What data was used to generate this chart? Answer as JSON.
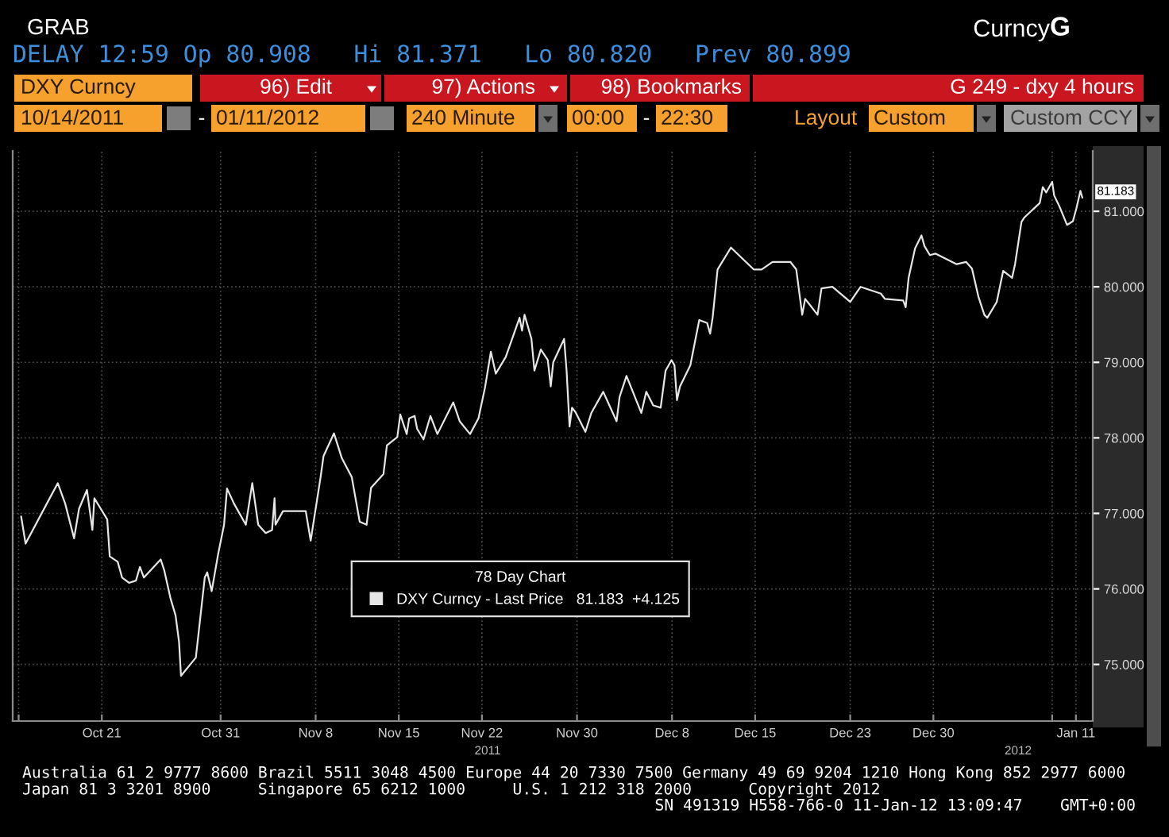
{
  "chart_data": {
    "type": "line",
    "line_style": "solid",
    "x": [
      "2011-10-14T05:00",
      "2011-10-14T14:00",
      "2011-10-16T09:00",
      "2011-10-17T07:00",
      "2011-10-17T22:00",
      "2011-10-18T16:00",
      "2011-10-19T02:00",
      "2011-10-19T18:00",
      "2011-10-20T05:00",
      "2011-10-20T09:00",
      "2011-10-21T11:00",
      "2011-10-21T16:00",
      "2011-10-22T08:00",
      "2011-10-22T17:00",
      "2011-10-23T07:00",
      "2011-10-23T21:00",
      "2011-10-24T05:00",
      "2011-10-24T13:00",
      "2011-10-25T23:00",
      "2011-10-26T06:00",
      "2011-10-26T19:00",
      "2011-10-27T05:00",
      "2011-10-27T12:00",
      "2011-10-27T16:00",
      "2011-10-28T22:00",
      "2011-10-29T16:00",
      "2011-10-29T21:00",
      "2011-10-30T06:00",
      "2011-10-30T19:00",
      "2011-10-31T07:00",
      "2011-10-31T13:00",
      "2011-11-01T03:00",
      "2011-11-02T03:00",
      "2011-11-02T16:00",
      "2011-11-03T04:00",
      "2011-11-03T19:00",
      "2011-11-04T08:00",
      "2011-11-04T13:00",
      "2011-11-04T15:00",
      "2011-11-05T06:00",
      "2011-11-07T04:00",
      "2011-11-07T14:00",
      "2011-11-08T10:00",
      "2011-11-08T16:00",
      "2011-11-09T13:00",
      "2011-11-10T05:00",
      "2011-11-11T01:00",
      "2011-11-11T17:00",
      "2011-11-12T07:00",
      "2011-11-12T16:00",
      "2011-11-13T17:00",
      "2011-11-14T00:00",
      "2011-11-14T21:00",
      "2011-11-15T03:00",
      "2011-11-15T16:00",
      "2011-11-15T21:00",
      "2011-11-16T08:00",
      "2011-11-16T13:00",
      "2011-11-17T02:00",
      "2011-11-17T16:00",
      "2011-11-18T06:00",
      "2011-11-19T14:00",
      "2011-11-20T03:00",
      "2011-11-21T00:00",
      "2011-11-21T17:00",
      "2011-11-22T06:00",
      "2011-11-22T18:00",
      "2011-11-23T04:00",
      "2011-11-24T00:00",
      "2011-11-25T04:00",
      "2011-11-25T09:00",
      "2011-11-25T14:00",
      "2011-11-26T04:00",
      "2011-11-26T10:00",
      "2011-11-26T23:00",
      "2011-11-27T13:00",
      "2011-11-27T19:00",
      "2011-11-28T00:00",
      "2011-11-28T22:00",
      "2011-11-29T03:00",
      "2011-11-29T09:00",
      "2011-11-29T14:00",
      "2011-11-29T21:00",
      "2011-11-30T17:00",
      "2011-12-01T05:00",
      "2011-12-02T05:00",
      "2011-12-03T08:00",
      "2011-12-03T14:00",
      "2011-12-04T04:00",
      "2011-12-05T10:00",
      "2011-12-05T20:00",
      "2011-12-06T10:00",
      "2011-12-07T01:00",
      "2011-12-07T11:00",
      "2011-12-07T23:00",
      "2011-12-08T05:00",
      "2011-12-08T10:00",
      "2011-12-08T16:00",
      "2011-12-09T13:00",
      "2011-12-10T07:00",
      "2011-12-10T23:00",
      "2011-12-11T05:00",
      "2011-12-11T10:00",
      "2011-12-11T20:00",
      "2011-12-12T23:00",
      "2011-12-14T21:00",
      "2011-12-15T13:00",
      "2011-12-16T11:00",
      "2011-12-17T23:00",
      "2011-12-18T11:00",
      "2011-12-18T23:00",
      "2011-12-19T05:00",
      "2011-12-20T06:00",
      "2011-12-20T14:00",
      "2011-12-21T12:00",
      "2011-12-23T00:00",
      "2011-12-23T21:00",
      "2011-12-25T14:00",
      "2011-12-25T22:00",
      "2011-12-27T11:00",
      "2011-12-27T16:00",
      "2011-12-27T22:00",
      "2011-12-28T11:00",
      "2011-12-29T00:00",
      "2011-12-29T06:00",
      "2011-12-29T17:00",
      "2011-12-30T04:00",
      "2011-12-31T23:00",
      "2012-01-01T18:00",
      "2012-01-02T06:00",
      "2012-01-02T19:00",
      "2012-01-03T07:00",
      "2012-01-03T13:00",
      "2012-01-04T08:00",
      "2012-01-04T21:00",
      "2012-01-05T15:00",
      "2012-01-05T21:00",
      "2012-01-06T10:00",
      "2012-01-06T16:00",
      "2012-01-07T23:00",
      "2012-01-08T05:00",
      "2012-01-08T12:00",
      "2012-01-09T00:00",
      "2012-01-09T04:00",
      "2012-01-09T15:00",
      "2012-01-10T06:00",
      "2012-01-10T18:00",
      "2012-01-11T01:00",
      "2012-01-11T09:00",
      "2012-01-11T13:00"
    ],
    "series": [
      {
        "name": "DXY Curncy - Last Price   81.183  +4.125",
        "color": "#e6e6e6",
        "values": [
          76.96,
          76.6,
          77.13,
          77.4,
          77.13,
          76.67,
          77.06,
          77.31,
          76.78,
          77.2,
          76.92,
          76.43,
          76.36,
          76.15,
          76.08,
          76.11,
          76.29,
          76.15,
          76.39,
          76.25,
          75.87,
          75.65,
          75.3,
          74.85,
          75.09,
          76.15,
          76.22,
          75.97,
          76.46,
          76.85,
          77.33,
          77.13,
          76.85,
          77.4,
          76.85,
          76.74,
          76.78,
          77.2,
          76.85,
          77.03,
          77.03,
          76.64,
          77.48,
          77.76,
          78.06,
          77.73,
          77.48,
          76.89,
          76.85,
          77.34,
          77.52,
          77.9,
          78.01,
          78.31,
          78.05,
          78.26,
          78.29,
          78.12,
          77.98,
          78.29,
          78.05,
          78.47,
          78.22,
          78.05,
          78.26,
          78.66,
          79.14,
          78.85,
          79.07,
          79.59,
          79.42,
          79.63,
          79.31,
          78.89,
          79.17,
          79.03,
          78.68,
          79.0,
          79.31,
          78.89,
          78.15,
          78.4,
          78.34,
          78.08,
          78.33,
          78.61,
          78.22,
          78.54,
          78.82,
          78.33,
          78.61,
          78.43,
          78.4,
          78.89,
          79.03,
          78.96,
          78.5,
          78.68,
          78.96,
          79.56,
          79.52,
          79.38,
          79.59,
          80.23,
          80.52,
          80.23,
          80.23,
          80.33,
          80.33,
          80.23,
          79.63,
          79.84,
          79.63,
          79.98,
          80.0,
          79.8,
          80.0,
          79.91,
          79.84,
          79.82,
          79.73,
          80.12,
          80.51,
          80.68,
          80.54,
          80.42,
          80.44,
          80.3,
          80.33,
          80.24,
          79.87,
          79.63,
          79.59,
          79.8,
          80.21,
          80.12,
          80.3,
          80.86,
          80.92,
          81.11,
          81.32,
          81.25,
          81.39,
          81.21,
          81.06,
          80.82,
          80.87,
          81.04,
          81.27,
          81.18
        ]
      }
    ],
    "xlim": [
      "2011-10-13T12:00",
      "2012-01-12T10:00"
    ],
    "xticks": [
      {
        "value": "2011-10-14",
        "label": null
      },
      {
        "value": "2011-10-21",
        "label": "Oct 21"
      },
      {
        "value": "2011-10-31",
        "label": "Oct 31"
      },
      {
        "value": "2011-11-08",
        "label": "Nov 8"
      },
      {
        "value": "2011-11-15",
        "label": "Nov 15"
      },
      {
        "value": "2011-11-22",
        "label": "Nov 22"
      },
      {
        "value": "2011-11-30",
        "label": "Nov 30"
      },
      {
        "value": "2011-12-08",
        "label": "Dec 8"
      },
      {
        "value": "2011-12-15",
        "label": "Dec 15"
      },
      {
        "value": "2011-12-23",
        "label": "Dec 23"
      },
      {
        "value": "2011-12-30",
        "label": "Dec 30"
      },
      {
        "value": "2012-01-09",
        "label": null
      },
      {
        "value": "2012-01-11",
        "label": "Jan 11"
      }
    ],
    "ylim": [
      74.25,
      81.8
    ],
    "yticks": [
      {
        "value": 75,
        "label": "75.000"
      },
      {
        "value": 76,
        "label": "76.000"
      },
      {
        "value": 77,
        "label": "77.000"
      },
      {
        "value": 78,
        "label": "78.000"
      },
      {
        "value": 79,
        "label": "79.000"
      },
      {
        "value": 80,
        "label": "80.000"
      },
      {
        "value": 81,
        "label": "81.000"
      }
    ],
    "grid": true,
    "legend": "bottom",
    "legend_title": "78 Day Chart",
    "annotations": [
      "GRAB",
      "Curncy",
      "G",
      "DELAY 12:59 Op 80.908   Hi 81.371   Lo 80.820   Prev 80.899",
      "DXY Curncy",
      "96) Edit",
      "97) Actions",
      "98) Bookmarks",
      "G 249 - dxy 4 hours",
      "10/14/2011",
      "-",
      "01/11/2012",
      "240 Minute",
      "00:00",
      "-",
      "22:30",
      "Layout",
      "Custom",
      "Custom CCY",
      "2011",
      "2012",
      "Australia 61 2 9777 8600 Brazil 5511 3048 4500 Europe 44 20 7330 7500 Germany 49 69 9204 1210 Hong Kong 852 2977 6000",
      "Japan 81 3 3201 8900     Singapore 65 6212 1000     U.S. 1 212 318 2000      Copyright 2012",
      "SN 491319 H558-766-0 11-Jan-12 13:09:47    GMT+0:00",
      {
        "text": "81.183",
        "x": "2012-01-11T13:00",
        "y": 81.183
      }
    ]
  }
}
